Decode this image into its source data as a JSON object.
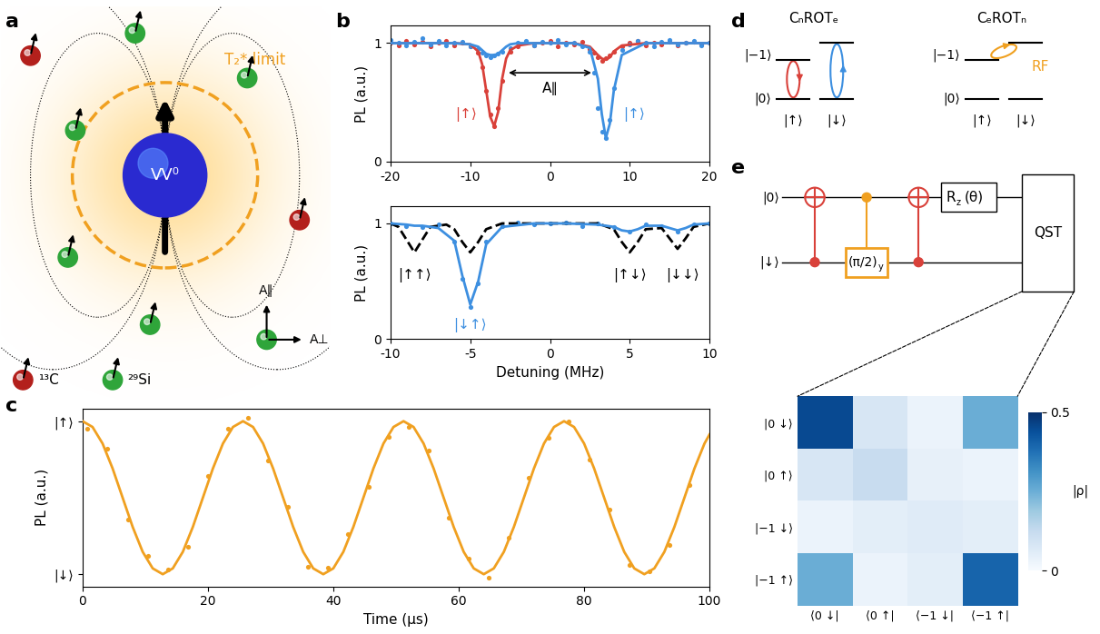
{
  "chart_data": [
    {
      "type": "line",
      "ylabel": "PL (a.u.)",
      "xlim": [
        -20,
        20
      ],
      "xticks": [
        -20,
        -10,
        0,
        10,
        20
      ],
      "ylim": [
        0,
        1.15
      ],
      "yticks": [
        0,
        1
      ],
      "series": [
        {
          "type": "scatter",
          "color": "#d9413a",
          "x": [
            -20,
            -19,
            -18,
            -17,
            -16,
            -15,
            -14,
            -13,
            -12,
            -11,
            -10,
            -9,
            -8.5,
            -8,
            -7.5,
            -7,
            -6.5,
            -6,
            -5,
            -4,
            -3,
            -2,
            -1,
            0,
            1,
            2,
            3,
            4,
            5,
            5.5,
            6,
            6.5,
            7,
            7.5,
            8,
            9,
            10,
            11,
            12,
            13,
            14,
            15,
            16,
            17,
            18,
            19,
            20
          ],
          "values": [
            1.0,
            0.98,
            1.02,
            0.99,
            1.01,
            0.97,
            1.0,
            1.02,
            0.98,
            1.0,
            0.97,
            0.92,
            0.8,
            0.6,
            0.4,
            0.3,
            0.45,
            0.68,
            0.93,
            0.97,
            1.01,
            0.98,
            1.0,
            1.02,
            0.97,
            1.0,
            0.99,
            1.01,
            0.95,
            0.92,
            0.88,
            0.85,
            0.87,
            0.9,
            0.93,
            0.97,
            1.0,
            1.02,
            0.98,
            1.0,
            0.99,
            1.01,
            0.98,
            1.0,
            1.01,
            0.99,
            1.0
          ]
        },
        {
          "type": "scatter",
          "color": "#3d8fe0",
          "x": [
            -20,
            -19,
            -18,
            -17,
            -16,
            -15,
            -14,
            -13,
            -12,
            -11,
            -10,
            -9,
            -8.5,
            -8,
            -7.5,
            -7,
            -6.5,
            -6,
            -5,
            -4,
            -3,
            -2,
            -1,
            0,
            1,
            2,
            3,
            4,
            5,
            5.5,
            6,
            6.5,
            7,
            7.5,
            8,
            9,
            10,
            11,
            12,
            13,
            14,
            15,
            16,
            17,
            18,
            19,
            20
          ],
          "values": [
            1.03,
            1.0,
            0.98,
            1.01,
            1.04,
            0.99,
            1.02,
            0.98,
            1.0,
            1.01,
            0.97,
            0.95,
            0.92,
            0.9,
            0.88,
            0.9,
            0.91,
            0.93,
            0.96,
            1.0,
            1.02,
            0.98,
            1.01,
            1.0,
            1.03,
            0.99,
            1.0,
            0.97,
            0.93,
            0.75,
            0.45,
            0.25,
            0.2,
            0.35,
            0.62,
            0.94,
            0.99,
            1.02,
            1.0,
            0.97,
            1.01,
            1.03,
            0.99,
            1.0,
            1.02,
            0.98,
            1.0
          ]
        },
        {
          "type": "line",
          "color": "#d9413a",
          "line_style": "solid",
          "x": [
            -20,
            -12,
            -10,
            -9,
            -8.5,
            -8,
            -7.5,
            -7,
            -6.5,
            -6,
            -5.5,
            -5,
            -4,
            -2,
            0,
            3,
            5,
            6,
            6.5,
            7,
            7.5,
            8,
            9,
            12,
            20
          ],
          "values": [
            1,
            1,
            0.99,
            0.93,
            0.82,
            0.6,
            0.38,
            0.3,
            0.42,
            0.7,
            0.87,
            0.94,
            0.98,
            1,
            1,
            1,
            0.97,
            0.9,
            0.87,
            0.86,
            0.88,
            0.93,
            0.98,
            1,
            1
          ]
        },
        {
          "type": "line",
          "color": "#3d8fe0",
          "line_style": "solid",
          "x": [
            -20,
            -12,
            -10,
            -9,
            -8.5,
            -8,
            -7.5,
            -7,
            -6.5,
            -6,
            -5.5,
            -5,
            -4,
            -2,
            0,
            3,
            5,
            6,
            6.5,
            7,
            7.5,
            8,
            9,
            12,
            20
          ],
          "values": [
            1,
            1,
            0.99,
            0.97,
            0.94,
            0.91,
            0.9,
            0.9,
            0.91,
            0.94,
            0.97,
            0.99,
            1,
            1,
            1,
            1,
            0.96,
            0.7,
            0.4,
            0.2,
            0.32,
            0.6,
            0.9,
            1,
            1
          ]
        }
      ],
      "annotations": [
        {
          "text": "|↑⟩",
          "color": "#d9413a"
        },
        {
          "text": "|↑⟩",
          "color": "#3d8fe0"
        },
        {
          "text": "A∥"
        }
      ]
    },
    {
      "type": "line",
      "xlabel": "Detuning (MHz)",
      "ylabel": "PL (a.u.)",
      "xlim": [
        -10,
        10
      ],
      "xticks": [
        -10,
        -5,
        0,
        5,
        10
      ],
      "ylim": [
        0,
        1.15
      ],
      "yticks": [
        0,
        1
      ],
      "series": [
        {
          "type": "line",
          "color": "#000000",
          "line_style": "dashed",
          "x": [
            -10,
            -9.5,
            -9,
            -8.5,
            -8,
            -7.5,
            -6.5,
            -6,
            -5.5,
            -5,
            -4.5,
            -4,
            -3,
            3,
            4,
            4.5,
            5,
            5.5,
            6,
            7,
            7.5,
            8,
            8.5,
            9,
            10
          ],
          "values": [
            1,
            0.97,
            0.86,
            0.75,
            0.86,
            0.97,
            0.99,
            0.95,
            0.84,
            0.75,
            0.84,
            0.95,
            1,
            1,
            0.95,
            0.84,
            0.75,
            0.84,
            0.95,
            0.96,
            0.87,
            0.78,
            0.87,
            0.97,
            1
          ]
        },
        {
          "type": "scatter",
          "color": "#3d8fe0",
          "x": [
            -10,
            -9,
            -8,
            -7,
            -6,
            -5.5,
            -5,
            -4.5,
            -4,
            -3,
            -2,
            -1,
            0,
            1,
            2,
            3,
            4,
            5,
            6,
            7,
            8,
            9,
            10
          ],
          "values": [
            1.0,
            0.98,
            0.97,
            0.99,
            0.84,
            0.52,
            0.28,
            0.48,
            0.84,
            0.98,
            1.01,
            0.99,
            1.0,
            1.01,
            0.98,
            1.0,
            0.97,
            0.93,
            0.99,
            0.98,
            0.93,
            0.99,
            1.0
          ]
        },
        {
          "type": "line",
          "color": "#3d8fe0",
          "line_style": "solid",
          "x": [
            -10,
            -9,
            -8.5,
            -8,
            -7,
            -6,
            -5.5,
            -5,
            -4.5,
            -4,
            -3,
            -1,
            1,
            3,
            4,
            4.5,
            5,
            5.5,
            6,
            7,
            7.5,
            8,
            8.5,
            9,
            10
          ],
          "values": [
            1,
            0.99,
            0.98,
            0.98,
            0.96,
            0.85,
            0.55,
            0.3,
            0.5,
            0.82,
            0.97,
            1,
            1,
            0.99,
            0.97,
            0.94,
            0.93,
            0.95,
            0.98,
            0.98,
            0.96,
            0.94,
            0.96,
            0.99,
            1
          ]
        }
      ],
      "annotations": [
        {
          "text": "|↑↑⟩"
        },
        {
          "text": "|↓↑⟩",
          "color": "#3d8fe0"
        },
        {
          "text": "|↑↓⟩"
        },
        {
          "text": "|↓↓⟩"
        }
      ]
    },
    {
      "type": "line",
      "xlabel": "Time (μs)",
      "ylabel": "PL (a.u.)",
      "xlim": [
        0,
        100
      ],
      "xticks": [
        0,
        20,
        40,
        60,
        80,
        100
      ],
      "ylim": [
        -0.08,
        1.08
      ],
      "yticks": [
        {
          "value": 0,
          "label": "|↓⟩"
        },
        {
          "value": 1,
          "label": "|↑⟩"
        }
      ],
      "series": [
        {
          "type": "scatter",
          "color": "#f0a020",
          "x": [
            0.8,
            4,
            7.2,
            10.4,
            13.6,
            16.8,
            20,
            23.2,
            26.4,
            29.6,
            32.8,
            36,
            39.2,
            42.4,
            45.6,
            48.8,
            52,
            55.2,
            58.4,
            61.6,
            64.8,
            68,
            71.2,
            74.4,
            77.6,
            80.8,
            84,
            87.2,
            90.4,
            93.6,
            96.8
          ],
          "values": [
            0.95,
            0.82,
            0.36,
            0.12,
            0.03,
            0.18,
            0.64,
            0.95,
            1.02,
            0.74,
            0.44,
            0.05,
            0.04,
            0.26,
            0.57,
            0.9,
            0.96,
            0.81,
            0.37,
            0.1,
            -0.02,
            0.24,
            0.63,
            0.89,
            1.0,
            0.75,
            0.42,
            0.06,
            0.02,
            0.19,
            0.58
          ]
        },
        {
          "type": "line",
          "color": "#f0a020",
          "line_style": "solid",
          "x": [
            0,
            1.6,
            3.2,
            4.8,
            6.4,
            8,
            9.6,
            11.2,
            12.8,
            14.4,
            16,
            17.6,
            19.2,
            20.8,
            22.4,
            24,
            25.6,
            27.2,
            28.8,
            30.4,
            32,
            33.6,
            35.2,
            36.8,
            38.4,
            40,
            41.6,
            43.2,
            44.8,
            46.4,
            48,
            49.6,
            51.2,
            52.8,
            54.4,
            56,
            57.6,
            59.2,
            60.8,
            62.4,
            64,
            65.6,
            67.2,
            68.8,
            70.4,
            72,
            73.6,
            75.2,
            76.8,
            78.4,
            80,
            81.6,
            83.2,
            84.8,
            86.4,
            88,
            89.6,
            91.2,
            92.8,
            94.4,
            96,
            97.6,
            99.2,
            100
          ],
          "values": [
            1,
            0.962,
            0.854,
            0.691,
            0.5,
            0.309,
            0.146,
            0.038,
            0,
            0.038,
            0.146,
            0.309,
            0.5,
            0.691,
            0.854,
            0.962,
            1,
            0.962,
            0.854,
            0.691,
            0.5,
            0.309,
            0.146,
            0.038,
            0,
            0.038,
            0.146,
            0.309,
            0.5,
            0.691,
            0.854,
            0.962,
            1,
            0.962,
            0.854,
            0.691,
            0.5,
            0.309,
            0.146,
            0.038,
            0,
            0.038,
            0.146,
            0.309,
            0.5,
            0.691,
            0.854,
            0.962,
            1,
            0.962,
            0.854,
            0.691,
            0.5,
            0.309,
            0.146,
            0.038,
            0,
            0.038,
            0.146,
            0.309,
            0.5,
            0.691,
            0.854,
            0.913
          ]
        }
      ]
    },
    {
      "type": "heatmap",
      "color": "Blues",
      "row_labels": [
        "|0 ↓⟩",
        "|0 ↑⟩",
        "|−1 ↓⟩",
        "|−1 ↑⟩"
      ],
      "col_labels": [
        "⟨0 ↓|",
        "⟨0 ↑|",
        "⟨−1 ↓|",
        "⟨−1 ↑|"
      ],
      "cells": [
        [
          0.45,
          0.08,
          0.03,
          0.25
        ],
        [
          0.08,
          0.12,
          0.04,
          0.03
        ],
        [
          0.03,
          0.05,
          0.06,
          0.05
        ],
        [
          0.25,
          0.03,
          0.05,
          0.4
        ]
      ],
      "colorbar_label": "|ρ|",
      "colorbar_range": [
        0,
        0.5
      ],
      "colorbar_ticks": [
        0,
        0.5
      ]
    }
  ],
  "diagrams": {
    "panel_labels": [
      "a",
      "b",
      "c",
      "d",
      "e"
    ],
    "a": {
      "center_label": "VV⁰",
      "limit_label": "T₂* limit",
      "coupling_labels": [
        "A∥",
        "A⊥"
      ],
      "species": [
        {
          "label": "¹³C",
          "color": "#b3201c"
        },
        {
          "label": "²⁹Si",
          "color": "#2fa53a"
        }
      ]
    },
    "d": {
      "titles": [
        "CₙROTₑ",
        "CₑROTₙ"
      ],
      "levels": [
        "|−1⟩",
        "|0⟩"
      ],
      "spin_states": [
        "|↑⟩",
        "|↓⟩"
      ],
      "drive": "RF"
    },
    "e": {
      "inputs": [
        "|0⟩",
        "|↓⟩"
      ],
      "gate": {
        "text": "(π/2)",
        "sub": "y"
      },
      "rotation": {
        "text": "R",
        "sub": "z",
        "arg": "(θ)"
      },
      "measure": "QST"
    }
  }
}
